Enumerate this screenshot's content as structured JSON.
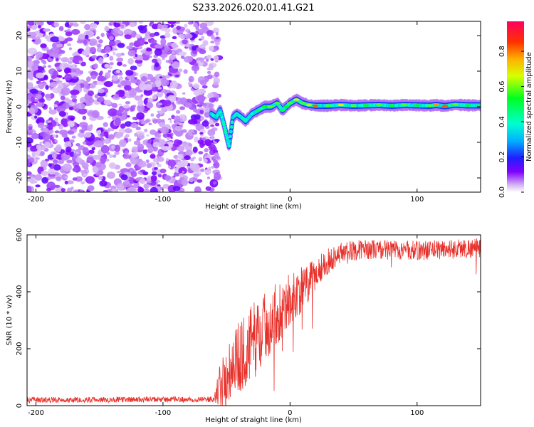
{
  "title": "S233.2026.020.01.41.G21",
  "chart_data": [
    {
      "type": "heatmap",
      "name": "spectrogram",
      "xlabel": "Height of straight line (km)",
      "ylabel": "Frequency (Hz)",
      "xlim": [
        -207,
        150
      ],
      "ylim": [
        -24,
        24
      ],
      "xticks": [
        -200,
        -100,
        0,
        100
      ],
      "xtick_labels": [
        "-200",
        "-100",
        "0",
        "100"
      ],
      "yticks": [
        -20,
        -10,
        0,
        10,
        20
      ],
      "ytick_labels": [
        "-20",
        "-10",
        "0",
        "10",
        "20"
      ],
      "noise_region_x": [
        -207,
        -60
      ],
      "signal_track": [
        {
          "x": -62,
          "y": -2,
          "amp": 0.25
        },
        {
          "x": -58,
          "y": -3,
          "amp": 0.3
        },
        {
          "x": -55,
          "y": -1,
          "amp": 0.35
        },
        {
          "x": -52,
          "y": -5,
          "amp": 0.3
        },
        {
          "x": -50,
          "y": -8,
          "amp": 0.2
        },
        {
          "x": -48,
          "y": -11,
          "amp": 0.15
        },
        {
          "x": -45,
          "y": -3,
          "amp": 0.4
        },
        {
          "x": -42,
          "y": -2,
          "amp": 0.35
        },
        {
          "x": -38,
          "y": -3,
          "amp": 0.45
        },
        {
          "x": -35,
          "y": -4,
          "amp": 0.4
        },
        {
          "x": -30,
          "y": -2,
          "amp": 0.45
        },
        {
          "x": -25,
          "y": -1,
          "amp": 0.5
        },
        {
          "x": -20,
          "y": 0,
          "amp": 0.55
        },
        {
          "x": -15,
          "y": 0,
          "amp": 0.6
        },
        {
          "x": -10,
          "y": 1,
          "amp": 0.6
        },
        {
          "x": -6,
          "y": -1,
          "amp": 0.5
        },
        {
          "x": -3,
          "y": 0,
          "amp": 0.55
        },
        {
          "x": 0,
          "y": 1,
          "amp": 0.6
        },
        {
          "x": 5,
          "y": 2,
          "amp": 0.7
        },
        {
          "x": 10,
          "y": 1,
          "amp": 0.6
        },
        {
          "x": 15,
          "y": 0.5,
          "amp": 0.65
        },
        {
          "x": 20,
          "y": 0.3,
          "amp": 0.85
        },
        {
          "x": 30,
          "y": 0.3,
          "amp": 0.6
        },
        {
          "x": 40,
          "y": 0.5,
          "amp": 0.7
        },
        {
          "x": 50,
          "y": 0.3,
          "amp": 0.6
        },
        {
          "x": 60,
          "y": 0.4,
          "amp": 0.55
        },
        {
          "x": 70,
          "y": 0.5,
          "amp": 0.6
        },
        {
          "x": 80,
          "y": 0.3,
          "amp": 0.55
        },
        {
          "x": 90,
          "y": 0.5,
          "amp": 0.6
        },
        {
          "x": 100,
          "y": 0.4,
          "amp": 0.55
        },
        {
          "x": 110,
          "y": 0.3,
          "amp": 0.6
        },
        {
          "x": 115,
          "y": 0.5,
          "amp": 0.8
        },
        {
          "x": 122,
          "y": 0.2,
          "amp": 0.85
        },
        {
          "x": 130,
          "y": 0.6,
          "amp": 0.6
        },
        {
          "x": 140,
          "y": 0.4,
          "amp": 0.55
        },
        {
          "x": 150,
          "y": 0.4,
          "amp": 0.5
        }
      ]
    },
    {
      "type": "colorbar",
      "name": "colorbar",
      "label": "Normalized spectral amplitude",
      "range": [
        0,
        0.97
      ],
      "ticks": [
        0,
        0.2,
        0.4,
        0.6,
        0.8
      ],
      "tick_labels": [
        "0.0",
        "0.2",
        "0.4",
        "0.6",
        "0.8"
      ]
    },
    {
      "type": "line",
      "name": "snr",
      "xlabel": "Height of straight line (km)",
      "ylabel": "SNR (10 * v/v)",
      "xlim": [
        -207,
        150
      ],
      "ylim": [
        0,
        600
      ],
      "xticks": [
        -200,
        -100,
        0,
        100
      ],
      "xtick_labels": [
        "-200",
        "-100",
        "0",
        "100"
      ],
      "yticks": [
        0,
        200,
        400,
        600
      ],
      "ytick_labels": [
        "0",
        "200",
        "400",
        "600"
      ],
      "color": "#e8302a",
      "trend": {
        "x": [
          -207,
          -60,
          -55,
          -45,
          -35,
          -25,
          -15,
          -5,
          5,
          15,
          25,
          40,
          60,
          100,
          150
        ],
        "y": [
          20,
          22,
          60,
          150,
          190,
          250,
          300,
          350,
          390,
          430,
          490,
          540,
          550,
          545,
          555
        ]
      },
      "spread": {
        "x": [
          -207,
          -60,
          -55,
          -45,
          -30,
          -10,
          10,
          25,
          40,
          150
        ],
        "y": [
          10,
          10,
          90,
          120,
          140,
          110,
          80,
          50,
          35,
          35
        ]
      }
    }
  ]
}
